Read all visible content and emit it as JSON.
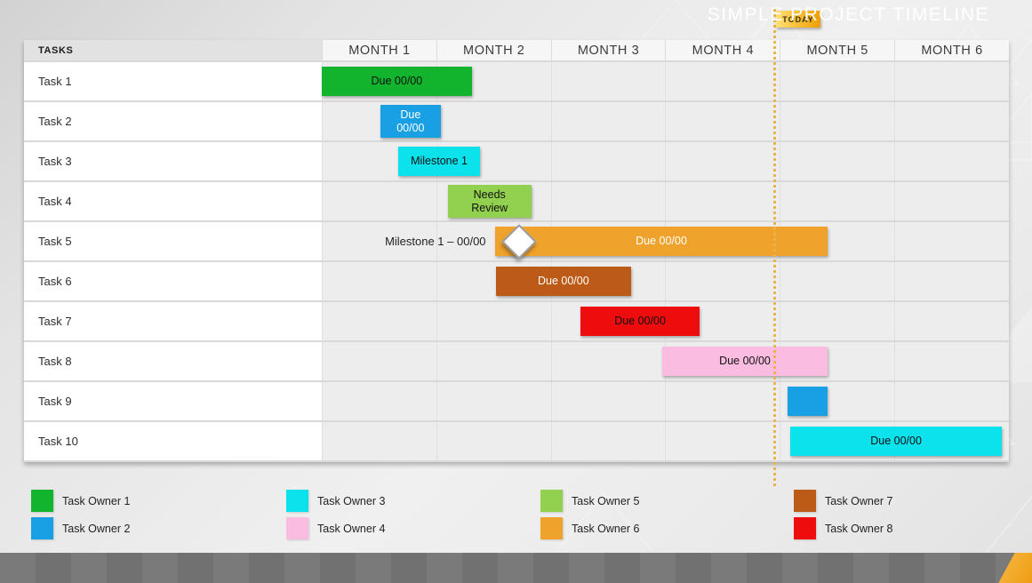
{
  "today": {
    "label": "TODAY"
  },
  "table": {
    "tasks_header": "TASKS",
    "months": [
      "MONTH 1",
      "MONTH 2",
      "MONTH 3",
      "MONTH 4",
      "MONTH 5",
      "MONTH 6"
    ]
  },
  "chart_data": {
    "type": "gantt-timeline",
    "title": "Simple Project Timeline",
    "x_axis": {
      "unit": "months",
      "labels": [
        "MONTH 1",
        "MONTH 2",
        "MONTH 3",
        "MONTH 4",
        "MONTH 5",
        "MONTH 6"
      ],
      "range": [
        0,
        6
      ]
    },
    "today_position_months": 3.95,
    "tasks": [
      {
        "name": "Task 1",
        "bar": {
          "start": 0.0,
          "end": 1.31,
          "label": "Due 00/00",
          "color": "#12B42E",
          "text_color": "#101010"
        }
      },
      {
        "name": "Task 2",
        "bar": {
          "start": 0.51,
          "end": 1.04,
          "label": "Due\n00/00",
          "color": "#189FE4",
          "text_color": "#FFFFFF"
        }
      },
      {
        "name": "Task 3",
        "bar": {
          "start": 0.67,
          "end": 1.38,
          "label": "Milestone 1",
          "color": "#0CE2EC",
          "text_color": "#101010"
        }
      },
      {
        "name": "Task 4",
        "bar": {
          "start": 1.1,
          "end": 1.83,
          "label": "Needs\nReview",
          "color": "#92D050",
          "text_color": "#101010"
        }
      },
      {
        "name": "Task 5",
        "row_note": "Milestone 1 – 00/00",
        "milestone_at_months": 1.72,
        "bar": {
          "start": 1.51,
          "end": 4.42,
          "label": "Due 00/00",
          "color": "#EFA32D",
          "text_color": "#FFFFFF"
        }
      },
      {
        "name": "Task 6",
        "bar": {
          "start": 1.52,
          "end": 2.7,
          "label": "Due 00/00",
          "color": "#BC5A17",
          "text_color": "#FFFFFF"
        }
      },
      {
        "name": "Task 7",
        "bar": {
          "start": 2.26,
          "end": 3.3,
          "label": "Due 00/00",
          "color": "#EE0C0C",
          "text_color": "#101010"
        }
      },
      {
        "name": "Task 8",
        "bar": {
          "start": 2.97,
          "end": 4.42,
          "label": "Due 00/00",
          "color": "#FBBCE2",
          "text_color": "#101010"
        }
      },
      {
        "name": "Task 9",
        "bar": {
          "start": 4.07,
          "end": 4.42,
          "label": "",
          "color": "#189FE4",
          "text_color": "#FFFFFF"
        }
      },
      {
        "name": "Task 10",
        "bar": {
          "start": 4.09,
          "end": 5.94,
          "label": "Due 00/00",
          "color": "#0CE2EC",
          "text_color": "#101010"
        }
      }
    ]
  },
  "legend": {
    "items": [
      {
        "label": "Task Owner 1",
        "color": "#12B42E"
      },
      {
        "label": "Task Owner 2",
        "color": "#189FE4"
      },
      {
        "label": "Task Owner 3",
        "color": "#0CE2EC"
      },
      {
        "label": "Task Owner 4",
        "color": "#FBBCE2"
      },
      {
        "label": "Task Owner 5",
        "color": "#92D050"
      },
      {
        "label": "Task Owner 6",
        "color": "#EFA32D"
      },
      {
        "label": "Task Owner 7",
        "color": "#BC5A17"
      },
      {
        "label": "Task Owner 8",
        "color": "#EE0C0C"
      }
    ]
  },
  "footer": {
    "title": "SIMPLE PROJECT TIMELINE",
    "bar_color": "#757575",
    "accent_color": "#F0A426"
  }
}
